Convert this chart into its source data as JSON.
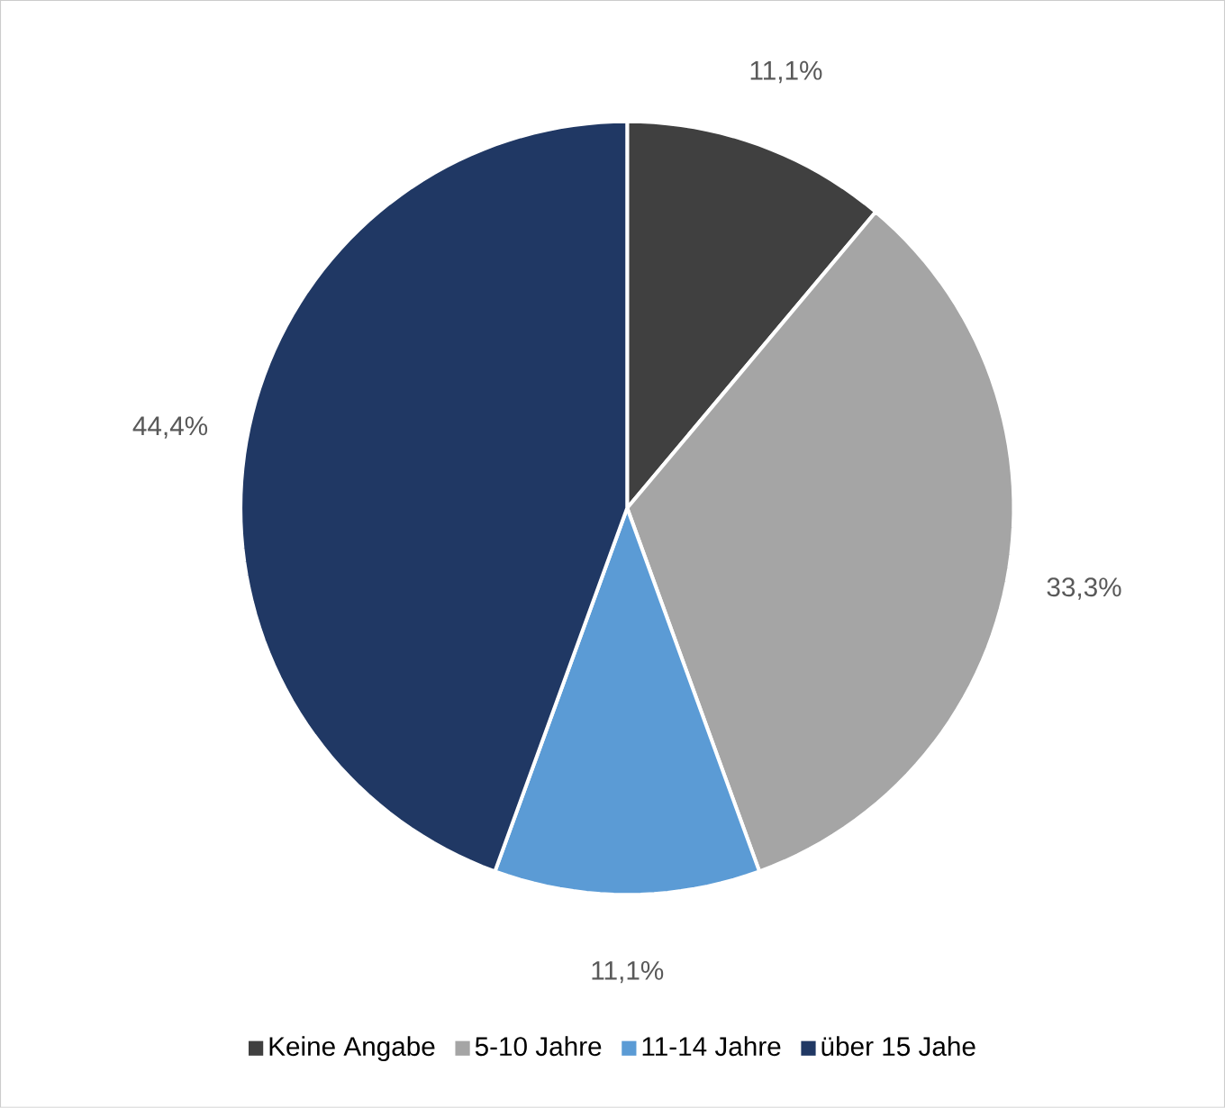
{
  "chart_data": {
    "type": "pie",
    "categories": [
      "Keine Angabe",
      "5-10 Jahre",
      "11-14 Jahre",
      "über 15 Jahe"
    ],
    "values": [
      11.1,
      33.3,
      11.1,
      44.4
    ],
    "colors": [
      "#404040",
      "#a5a5a5",
      "#5b9bd5",
      "#203864"
    ],
    "value_labels": [
      "11,1%",
      "33,3%",
      "11,1%",
      "44,4%"
    ],
    "legend": "bottom"
  }
}
